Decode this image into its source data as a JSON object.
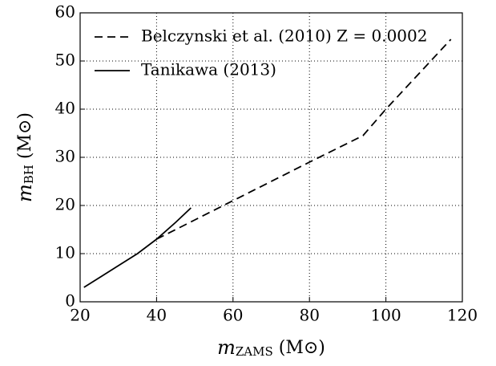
{
  "chart_data": {
    "type": "line",
    "x_label": {
      "main": "m",
      "sub": "ZAMS",
      "rest": " (M⊙)"
    },
    "y_label": {
      "main": "m",
      "sub": "BH",
      "rest": " (M⊙)"
    },
    "series": [
      {
        "name": "Belczynski et al. (2010) Z = 0.0002",
        "color": "#000000",
        "dash": "dashed",
        "x": [
          40,
          50,
          60,
          80,
          94,
          100,
          117
        ],
        "values": [
          13,
          17,
          21,
          29,
          34.5,
          40,
          54.5
        ]
      },
      {
        "name": "Tanikawa (2013)",
        "color": "#000000",
        "dash": "solid",
        "x": [
          21,
          30,
          35,
          40,
          45,
          49
        ],
        "values": [
          3,
          7.5,
          10,
          13,
          16.5,
          19.5
        ]
      }
    ],
    "xlim": [
      20,
      120
    ],
    "xticks": [
      20,
      40,
      60,
      80,
      100,
      120
    ],
    "ylim": [
      0,
      60
    ],
    "yticks": [
      0,
      10,
      20,
      30,
      40,
      50,
      60
    ],
    "grid": true,
    "legend": "upper left"
  }
}
